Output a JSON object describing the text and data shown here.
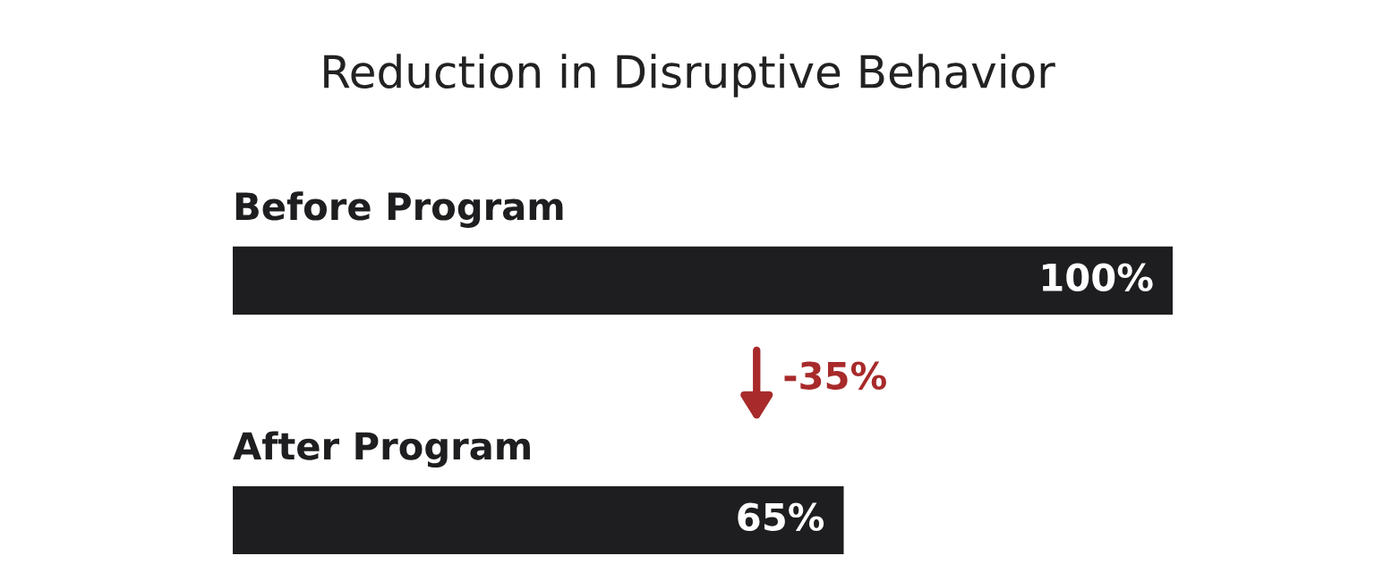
{
  "chart_data": {
    "type": "bar",
    "orientation": "horizontal",
    "title": "Reduction in Disruptive Behavior",
    "categories": [
      "Before Program",
      "After Program"
    ],
    "values": [
      100,
      65
    ],
    "color": "#1e1e20",
    "value_labels": [
      "100%",
      "65%"
    ],
    "annotations": [
      "-35%"
    ]
  }
}
